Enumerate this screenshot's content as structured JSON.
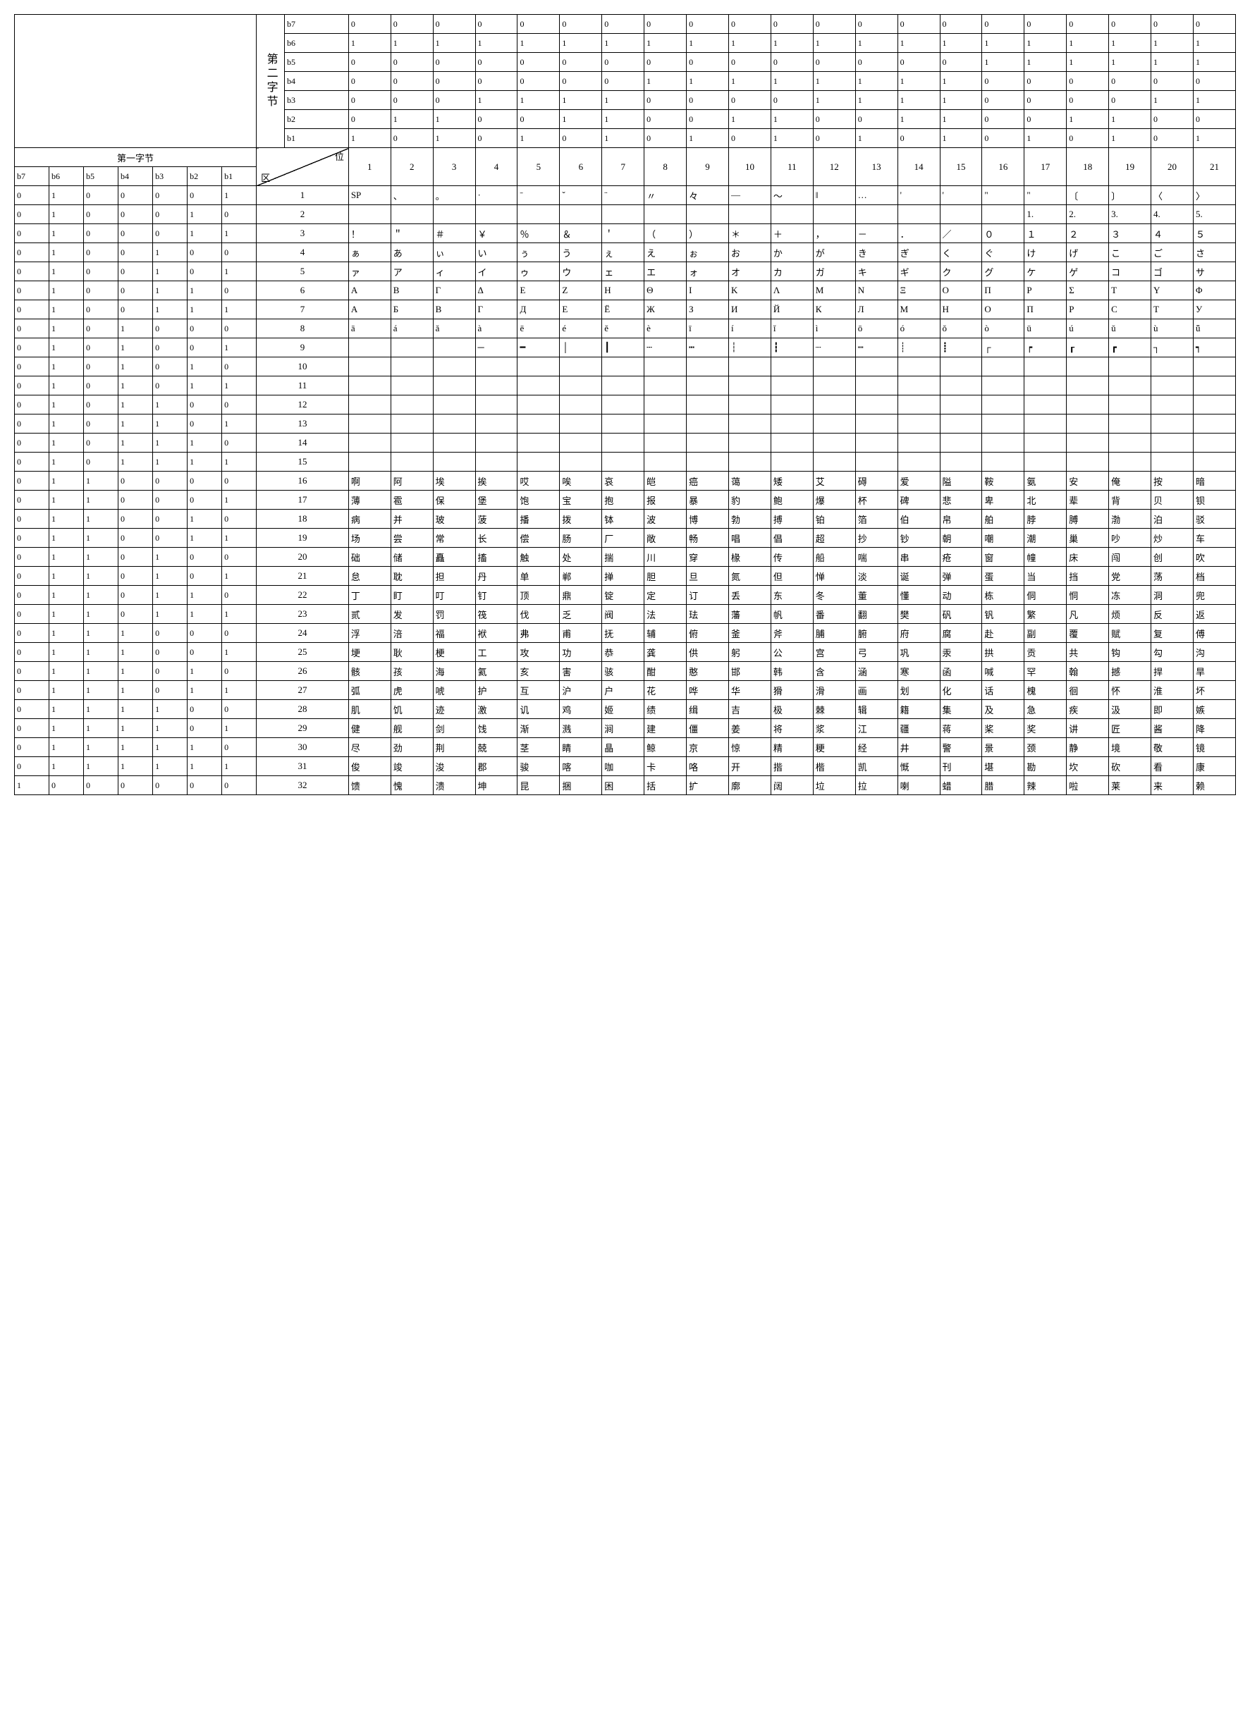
{
  "labels": {
    "second_byte": "第二字节",
    "first_byte": "第一字节",
    "wei": "位",
    "qu": "区"
  },
  "bit_names": [
    "b7",
    "b6",
    "b5",
    "b4",
    "b3",
    "b2",
    "b1"
  ],
  "second_byte_bits": {
    "b7": [
      "0",
      "0",
      "0",
      "0",
      "0",
      "0",
      "0",
      "0",
      "0",
      "0",
      "0",
      "0",
      "0",
      "0",
      "0",
      "0",
      "0",
      "0",
      "0",
      "0",
      "0"
    ],
    "b6": [
      "1",
      "1",
      "1",
      "1",
      "1",
      "1",
      "1",
      "1",
      "1",
      "1",
      "1",
      "1",
      "1",
      "1",
      "1",
      "1",
      "1",
      "1",
      "1",
      "1",
      "1"
    ],
    "b5": [
      "0",
      "0",
      "0",
      "0",
      "0",
      "0",
      "0",
      "0",
      "0",
      "0",
      "0",
      "0",
      "0",
      "0",
      "0",
      "1",
      "1",
      "1",
      "1",
      "1",
      "1"
    ],
    "b4": [
      "0",
      "0",
      "0",
      "0",
      "0",
      "0",
      "0",
      "1",
      "1",
      "1",
      "1",
      "1",
      "1",
      "1",
      "1",
      "0",
      "0",
      "0",
      "0",
      "0",
      "0"
    ],
    "b3": [
      "0",
      "0",
      "0",
      "1",
      "1",
      "1",
      "1",
      "0",
      "0",
      "0",
      "0",
      "1",
      "1",
      "1",
      "1",
      "0",
      "0",
      "0",
      "0",
      "1",
      "1"
    ],
    "b2": [
      "0",
      "1",
      "1",
      "0",
      "0",
      "1",
      "1",
      "0",
      "0",
      "1",
      "1",
      "0",
      "0",
      "1",
      "1",
      "0",
      "0",
      "1",
      "1",
      "0",
      "0"
    ],
    "b1": [
      "1",
      "0",
      "1",
      "0",
      "1",
      "0",
      "1",
      "0",
      "1",
      "0",
      "1",
      "0",
      "1",
      "0",
      "1",
      "0",
      "1",
      "0",
      "1",
      "0",
      "1"
    ]
  },
  "first_byte_bits_header": [
    "b7",
    "b6",
    "b5",
    "b4",
    "b3",
    "b2",
    "b1"
  ],
  "column_numbers": [
    "1",
    "2",
    "3",
    "4",
    "5",
    "6",
    "7",
    "8",
    "9",
    "10",
    "11",
    "12",
    "13",
    "14",
    "15",
    "16",
    "17",
    "18",
    "19",
    "20",
    "21"
  ],
  "rows": [
    {
      "bits": [
        "0",
        "1",
        "0",
        "0",
        "0",
        "0",
        "1"
      ],
      "qu": "1",
      "cells": [
        "SP",
        "、",
        "。",
        "·",
        "ˉ",
        "ˇ",
        "¨",
        "〃",
        "々",
        "—",
        "～",
        "‖",
        "…",
        "'",
        "'",
        "\"",
        "\"",
        "〔",
        "〕",
        "〈",
        "〉"
      ]
    },
    {
      "bits": [
        "0",
        "1",
        "0",
        "0",
        "0",
        "1",
        "0"
      ],
      "qu": "2",
      "cells": [
        "",
        "",
        "",
        "",
        "",
        "",
        "",
        "",
        "",
        "",
        "",
        "",
        "",
        "",
        "",
        "",
        "1.",
        "2.",
        "3.",
        "4.",
        "5."
      ]
    },
    {
      "bits": [
        "0",
        "1",
        "0",
        "0",
        "0",
        "1",
        "1"
      ],
      "qu": "3",
      "cells": [
        "！",
        "＂",
        "＃",
        "￥",
        "％",
        "＆",
        "＇",
        "（",
        "）",
        "＊",
        "＋",
        "，",
        "－",
        "．",
        "／",
        "０",
        "１",
        "２",
        "３",
        "４",
        "５"
      ]
    },
    {
      "bits": [
        "0",
        "1",
        "0",
        "0",
        "1",
        "0",
        "0"
      ],
      "qu": "4",
      "cells": [
        "ぁ",
        "あ",
        "ぃ",
        "い",
        "ぅ",
        "う",
        "ぇ",
        "え",
        "ぉ",
        "お",
        "か",
        "が",
        "き",
        "ぎ",
        "く",
        "ぐ",
        "け",
        "げ",
        "こ",
        "ご",
        "さ"
      ]
    },
    {
      "bits": [
        "0",
        "1",
        "0",
        "0",
        "1",
        "0",
        "1"
      ],
      "qu": "5",
      "cells": [
        "ァ",
        "ア",
        "ィ",
        "イ",
        "ゥ",
        "ウ",
        "ェ",
        "エ",
        "ォ",
        "オ",
        "カ",
        "ガ",
        "キ",
        "ギ",
        "ク",
        "グ",
        "ケ",
        "ゲ",
        "コ",
        "ゴ",
        "サ"
      ]
    },
    {
      "bits": [
        "0",
        "1",
        "0",
        "0",
        "1",
        "1",
        "0"
      ],
      "qu": "6",
      "cells": [
        "Α",
        "Β",
        "Γ",
        "Δ",
        "Ε",
        "Ζ",
        "Η",
        "Θ",
        "Ι",
        "Κ",
        "Λ",
        "Μ",
        "Ν",
        "Ξ",
        "Ο",
        "Π",
        "Ρ",
        "Σ",
        "Τ",
        "Υ",
        "Φ"
      ]
    },
    {
      "bits": [
        "0",
        "1",
        "0",
        "0",
        "1",
        "1",
        "1"
      ],
      "qu": "7",
      "cells": [
        "А",
        "Б",
        "В",
        "Г",
        "Д",
        "Е",
        "Ё",
        "Ж",
        "З",
        "И",
        "Й",
        "К",
        "Л",
        "М",
        "Н",
        "О",
        "П",
        "Р",
        "С",
        "Т",
        "У"
      ]
    },
    {
      "bits": [
        "0",
        "1",
        "0",
        "1",
        "0",
        "0",
        "0"
      ],
      "qu": "8",
      "cells": [
        "ā",
        "á",
        "ǎ",
        "à",
        "ē",
        "é",
        "ě",
        "è",
        "ī",
        "í",
        "ǐ",
        "ì",
        "ō",
        "ó",
        "ǒ",
        "ò",
        "ū",
        "ú",
        "ǔ",
        "ù",
        "ǖ"
      ]
    },
    {
      "bits": [
        "0",
        "1",
        "0",
        "1",
        "0",
        "0",
        "1"
      ],
      "qu": "9",
      "cells": [
        "",
        "",
        "",
        "─",
        "━",
        "│",
        "┃",
        "┄",
        "┅",
        "┆",
        "┇",
        "┈",
        "┉",
        "┊",
        "┋",
        "┌",
        "┍",
        "┎",
        "┏",
        "┐",
        "┑"
      ]
    },
    {
      "bits": [
        "0",
        "1",
        "0",
        "1",
        "0",
        "1",
        "0"
      ],
      "qu": "10",
      "cells": [
        "",
        "",
        "",
        "",
        "",
        "",
        "",
        "",
        "",
        "",
        "",
        "",
        "",
        "",
        "",
        "",
        "",
        "",
        "",
        "",
        ""
      ]
    },
    {
      "bits": [
        "0",
        "1",
        "0",
        "1",
        "0",
        "1",
        "1"
      ],
      "qu": "11",
      "cells": [
        "",
        "",
        "",
        "",
        "",
        "",
        "",
        "",
        "",
        "",
        "",
        "",
        "",
        "",
        "",
        "",
        "",
        "",
        "",
        "",
        ""
      ]
    },
    {
      "bits": [
        "0",
        "1",
        "0",
        "1",
        "1",
        "0",
        "0"
      ],
      "qu": "12",
      "cells": [
        "",
        "",
        "",
        "",
        "",
        "",
        "",
        "",
        "",
        "",
        "",
        "",
        "",
        "",
        "",
        "",
        "",
        "",
        "",
        "",
        ""
      ]
    },
    {
      "bits": [
        "0",
        "1",
        "0",
        "1",
        "1",
        "0",
        "1"
      ],
      "qu": "13",
      "cells": [
        "",
        "",
        "",
        "",
        "",
        "",
        "",
        "",
        "",
        "",
        "",
        "",
        "",
        "",
        "",
        "",
        "",
        "",
        "",
        "",
        ""
      ]
    },
    {
      "bits": [
        "0",
        "1",
        "0",
        "1",
        "1",
        "1",
        "0"
      ],
      "qu": "14",
      "cells": [
        "",
        "",
        "",
        "",
        "",
        "",
        "",
        "",
        "",
        "",
        "",
        "",
        "",
        "",
        "",
        "",
        "",
        "",
        "",
        "",
        ""
      ]
    },
    {
      "bits": [
        "0",
        "1",
        "0",
        "1",
        "1",
        "1",
        "1"
      ],
      "qu": "15",
      "cells": [
        "",
        "",
        "",
        "",
        "",
        "",
        "",
        "",
        "",
        "",
        "",
        "",
        "",
        "",
        "",
        "",
        "",
        "",
        "",
        "",
        ""
      ]
    },
    {
      "bits": [
        "0",
        "1",
        "1",
        "0",
        "0",
        "0",
        "0"
      ],
      "qu": "16",
      "cells": [
        "啊",
        "阿",
        "埃",
        "挨",
        "哎",
        "唉",
        "哀",
        "皑",
        "癌",
        "蔼",
        "矮",
        "艾",
        "碍",
        "爱",
        "隘",
        "鞍",
        "氨",
        "安",
        "俺",
        "按",
        "暗"
      ]
    },
    {
      "bits": [
        "0",
        "1",
        "1",
        "0",
        "0",
        "0",
        "1"
      ],
      "qu": "17",
      "cells": [
        "薄",
        "雹",
        "保",
        "堡",
        "饱",
        "宝",
        "抱",
        "报",
        "暴",
        "豹",
        "鲍",
        "爆",
        "杯",
        "碑",
        "悲",
        "卑",
        "北",
        "辈",
        "背",
        "贝",
        "钡"
      ]
    },
    {
      "bits": [
        "0",
        "1",
        "1",
        "0",
        "0",
        "1",
        "0"
      ],
      "qu": "18",
      "cells": [
        "病",
        "并",
        "玻",
        "菠",
        "播",
        "拨",
        "钵",
        "波",
        "博",
        "勃",
        "搏",
        "铂",
        "箔",
        "伯",
        "帛",
        "舶",
        "脖",
        "膊",
        "渤",
        "泊",
        "驳"
      ]
    },
    {
      "bits": [
        "0",
        "1",
        "1",
        "0",
        "0",
        "1",
        "1"
      ],
      "qu": "19",
      "cells": [
        "场",
        "尝",
        "常",
        "长",
        "偿",
        "肠",
        "厂",
        "敞",
        "畅",
        "唱",
        "倡",
        "超",
        "抄",
        "钞",
        "朝",
        "嘲",
        "潮",
        "巢",
        "吵",
        "炒",
        "车"
      ]
    },
    {
      "bits": [
        "0",
        "1",
        "1",
        "0",
        "1",
        "0",
        "0"
      ],
      "qu": "20",
      "cells": [
        "础",
        "储",
        "矗",
        "搐",
        "触",
        "处",
        "揣",
        "川",
        "穿",
        "椽",
        "传",
        "船",
        "喘",
        "串",
        "疮",
        "窗",
        "幢",
        "床",
        "闯",
        "创",
        "吹"
      ]
    },
    {
      "bits": [
        "0",
        "1",
        "1",
        "0",
        "1",
        "0",
        "1"
      ],
      "qu": "21",
      "cells": [
        "怠",
        "耽",
        "担",
        "丹",
        "单",
        "郸",
        "掸",
        "胆",
        "旦",
        "氮",
        "但",
        "惮",
        "淡",
        "诞",
        "弹",
        "蛋",
        "当",
        "挡",
        "党",
        "荡",
        "档"
      ]
    },
    {
      "bits": [
        "0",
        "1",
        "1",
        "0",
        "1",
        "1",
        "0"
      ],
      "qu": "22",
      "cells": [
        "丁",
        "盯",
        "叮",
        "钉",
        "顶",
        "鼎",
        "锭",
        "定",
        "订",
        "丢",
        "东",
        "冬",
        "董",
        "懂",
        "动",
        "栋",
        "侗",
        "恫",
        "冻",
        "洞",
        "兜"
      ]
    },
    {
      "bits": [
        "0",
        "1",
        "1",
        "0",
        "1",
        "1",
        "1"
      ],
      "qu": "23",
      "cells": [
        "贰",
        "发",
        "罚",
        "筏",
        "伐",
        "乏",
        "阀",
        "法",
        "珐",
        "藩",
        "帆",
        "番",
        "翻",
        "樊",
        "矾",
        "钒",
        "繁",
        "凡",
        "烦",
        "反",
        "返"
      ]
    },
    {
      "bits": [
        "0",
        "1",
        "1",
        "1",
        "0",
        "0",
        "0"
      ],
      "qu": "24",
      "cells": [
        "浮",
        "涪",
        "福",
        "袱",
        "弗",
        "甫",
        "抚",
        "辅",
        "俯",
        "釜",
        "斧",
        "脯",
        "腑",
        "府",
        "腐",
        "赴",
        "副",
        "覆",
        "赋",
        "复",
        "傅"
      ]
    },
    {
      "bits": [
        "0",
        "1",
        "1",
        "1",
        "0",
        "0",
        "1"
      ],
      "qu": "25",
      "cells": [
        "埂",
        "耿",
        "梗",
        "工",
        "攻",
        "功",
        "恭",
        "龚",
        "供",
        "躬",
        "公",
        "宫",
        "弓",
        "巩",
        "汞",
        "拱",
        "贡",
        "共",
        "钩",
        "勾",
        "沟"
      ]
    },
    {
      "bits": [
        "0",
        "1",
        "1",
        "1",
        "0",
        "1",
        "0"
      ],
      "qu": "26",
      "cells": [
        "骸",
        "孩",
        "海",
        "氦",
        "亥",
        "害",
        "骇",
        "酣",
        "憨",
        "邯",
        "韩",
        "含",
        "涵",
        "寒",
        "函",
        "喊",
        "罕",
        "翰",
        "撼",
        "捍",
        "旱"
      ]
    },
    {
      "bits": [
        "0",
        "1",
        "1",
        "1",
        "0",
        "1",
        "1"
      ],
      "qu": "27",
      "cells": [
        "弧",
        "虎",
        "唬",
        "护",
        "互",
        "沪",
        "户",
        "花",
        "哗",
        "华",
        "猾",
        "滑",
        "画",
        "划",
        "化",
        "话",
        "槐",
        "徊",
        "怀",
        "淮",
        "坏"
      ]
    },
    {
      "bits": [
        "0",
        "1",
        "1",
        "1",
        "1",
        "0",
        "0"
      ],
      "qu": "28",
      "cells": [
        "肌",
        "饥",
        "迹",
        "激",
        "讥",
        "鸡",
        "姬",
        "绩",
        "缉",
        "吉",
        "极",
        "棘",
        "辑",
        "籍",
        "集",
        "及",
        "急",
        "疾",
        "汲",
        "即",
        "嫉"
      ]
    },
    {
      "bits": [
        "0",
        "1",
        "1",
        "1",
        "1",
        "0",
        "1"
      ],
      "qu": "29",
      "cells": [
        "健",
        "舰",
        "剑",
        "饯",
        "渐",
        "溅",
        "涧",
        "建",
        "僵",
        "姜",
        "将",
        "浆",
        "江",
        "疆",
        "蒋",
        "桨",
        "奖",
        "讲",
        "匠",
        "酱",
        "降"
      ]
    },
    {
      "bits": [
        "0",
        "1",
        "1",
        "1",
        "1",
        "1",
        "0"
      ],
      "qu": "30",
      "cells": [
        "尽",
        "劲",
        "荆",
        "兢",
        "茎",
        "睛",
        "晶",
        "鲸",
        "京",
        "惊",
        "精",
        "粳",
        "经",
        "井",
        "警",
        "景",
        "颈",
        "静",
        "境",
        "敬",
        "镜"
      ]
    },
    {
      "bits": [
        "0",
        "1",
        "1",
        "1",
        "1",
        "1",
        "1"
      ],
      "qu": "31",
      "cells": [
        "俊",
        "竣",
        "浚",
        "郡",
        "骏",
        "喀",
        "咖",
        "卡",
        "咯",
        "开",
        "揩",
        "楷",
        "凯",
        "慨",
        "刊",
        "堪",
        "勘",
        "坎",
        "砍",
        "看",
        "康"
      ]
    },
    {
      "bits": [
        "1",
        "0",
        "0",
        "0",
        "0",
        "0",
        "0"
      ],
      "qu": "32",
      "cells": [
        "馈",
        "愧",
        "溃",
        "坤",
        "昆",
        "捆",
        "困",
        "括",
        "扩",
        "廓",
        "阔",
        "垃",
        "拉",
        "喇",
        "蜡",
        "腊",
        "辣",
        "啦",
        "莱",
        "来",
        "赖"
      ]
    }
  ],
  "style": {
    "border_color": "#000000",
    "background_color": "#ffffff",
    "font_family": "SimSun",
    "cell_fontsize": 13,
    "header_fontsize": 13
  }
}
